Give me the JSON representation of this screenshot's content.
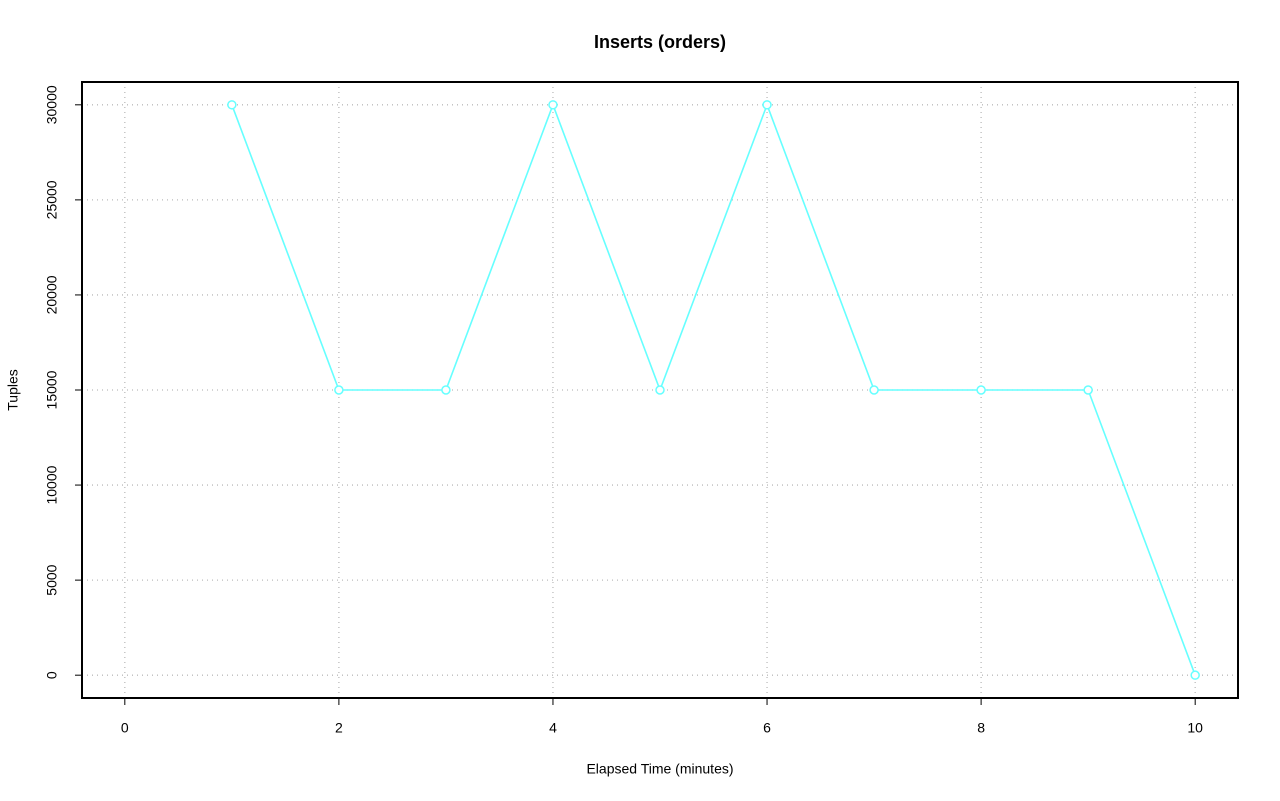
{
  "chart_data": {
    "type": "line",
    "title": "Inserts (orders)",
    "x_label": "Elapsed Time (minutes)",
    "y_label": "Tuples",
    "x": [
      1,
      2,
      3,
      4,
      5,
      6,
      7,
      8,
      9,
      10
    ],
    "values": [
      30000,
      15000,
      15000,
      30000,
      15000,
      30000,
      15000,
      15000,
      15000,
      0
    ],
    "color": "#66ffff",
    "xlim": [
      -0.4,
      10.4
    ],
    "xticks": [
      0,
      2,
      4,
      6,
      8,
      10
    ],
    "ylim": [
      -1200,
      31200
    ],
    "yticks": [
      0,
      5000,
      10000,
      15000,
      20000,
      25000,
      30000
    ],
    "grid": true
  }
}
